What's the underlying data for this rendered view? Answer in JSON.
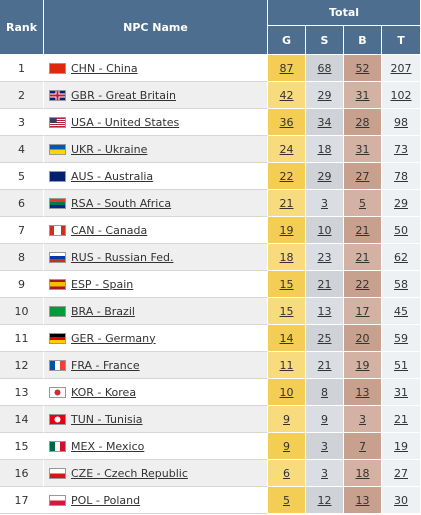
{
  "headers": {
    "rank": "Rank",
    "npc_name": "NPC Name",
    "total": "Total",
    "gold": "G",
    "silver": "S",
    "bronze": "B",
    "total_col": "T"
  },
  "rows": [
    {
      "rank": "1",
      "flag": "cn",
      "name": "CHN - China",
      "g": "87",
      "s": "68",
      "b": "52",
      "t": "207"
    },
    {
      "rank": "2",
      "flag": "gb",
      "name": "GBR - Great Britain",
      "g": "42",
      "s": "29",
      "b": "31",
      "t": "102"
    },
    {
      "rank": "3",
      "flag": "us",
      "name": "USA - United States",
      "g": "36",
      "s": "34",
      "b": "28",
      "t": "98"
    },
    {
      "rank": "4",
      "flag": "ua",
      "name": "UKR - Ukraine",
      "g": "24",
      "s": "18",
      "b": "31",
      "t": "73"
    },
    {
      "rank": "5",
      "flag": "au",
      "name": "AUS - Australia",
      "g": "22",
      "s": "29",
      "b": "27",
      "t": "78"
    },
    {
      "rank": "6",
      "flag": "za",
      "name": "RSA - South Africa",
      "g": "21",
      "s": "3",
      "b": "5",
      "t": "29"
    },
    {
      "rank": "7",
      "flag": "ca",
      "name": "CAN - Canada",
      "g": "19",
      "s": "10",
      "b": "21",
      "t": "50"
    },
    {
      "rank": "8",
      "flag": "ru",
      "name": "RUS - Russian Fed.",
      "g": "18",
      "s": "23",
      "b": "21",
      "t": "62"
    },
    {
      "rank": "9",
      "flag": "es",
      "name": "ESP - Spain",
      "g": "15",
      "s": "21",
      "b": "22",
      "t": "58"
    },
    {
      "rank": "10",
      "flag": "br",
      "name": "BRA - Brazil",
      "g": "15",
      "s": "13",
      "b": "17",
      "t": "45"
    },
    {
      "rank": "11",
      "flag": "de",
      "name": "GER - Germany",
      "g": "14",
      "s": "25",
      "b": "20",
      "t": "59"
    },
    {
      "rank": "12",
      "flag": "fr",
      "name": "FRA - France",
      "g": "11",
      "s": "21",
      "b": "19",
      "t": "51"
    },
    {
      "rank": "13",
      "flag": "kr",
      "name": "KOR - Korea",
      "g": "10",
      "s": "8",
      "b": "13",
      "t": "31"
    },
    {
      "rank": "14",
      "flag": "tn",
      "name": "TUN - Tunisia",
      "g": "9",
      "s": "9",
      "b": "3",
      "t": "21"
    },
    {
      "rank": "15",
      "flag": "mx",
      "name": "MEX - Mexico",
      "g": "9",
      "s": "3",
      "b": "7",
      "t": "19"
    },
    {
      "rank": "16",
      "flag": "cz",
      "name": "CZE - Czech Republic",
      "g": "6",
      "s": "3",
      "b": "18",
      "t": "27"
    },
    {
      "rank": "17",
      "flag": "pl",
      "name": "POL - Poland",
      "g": "5",
      "s": "12",
      "b": "13",
      "t": "30"
    }
  ]
}
